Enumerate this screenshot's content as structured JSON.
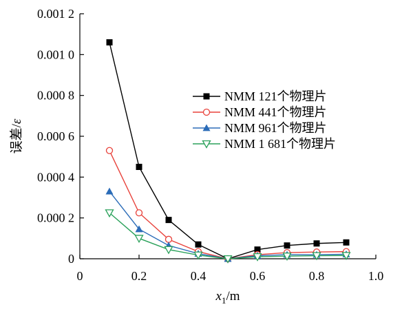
{
  "chart_data": {
    "type": "line",
    "x": [
      0.1,
      0.2,
      0.3,
      0.4,
      0.5,
      0.6,
      0.7,
      0.8,
      0.9
    ],
    "xlabel_main": "x",
    "xlabel_sub": "1",
    "xlabel_unit": "/m",
    "ylabel_main": "误差/",
    "ylabel_symbol": "ε",
    "xlim": [
      0,
      1.0
    ],
    "ylim": [
      0,
      0.0012
    ],
    "x_ticks": [
      0,
      0.2,
      0.4,
      0.6,
      0.8,
      1.0
    ],
    "x_tick_labels": [
      "0",
      "0.2",
      "0.4",
      "0.6",
      "0.8",
      "1.0"
    ],
    "y_ticks": [
      0,
      0.0002,
      0.0004,
      0.0006,
      0.0008,
      0.001,
      0.0012
    ],
    "y_tick_labels": [
      "0",
      "0.000 2",
      "0.000 4",
      "0.000 6",
      "0.000 8",
      "0.001 0",
      "0.001 2"
    ],
    "grid": false,
    "legend_position": "right",
    "series": [
      {
        "name": "NMM 121个物理片",
        "color": "#000000",
        "marker": "square-filled",
        "values": [
          0.00106,
          0.00045,
          0.00019,
          7e-05,
          0.0,
          4.5e-05,
          6.5e-05,
          7.5e-05,
          8e-05
        ]
      },
      {
        "name": "NMM 441个物理片",
        "color": "#e8413a",
        "marker": "circle-open",
        "values": [
          0.00053,
          0.000225,
          9.5e-05,
          3.5e-05,
          0.0,
          2e-05,
          3e-05,
          3.3e-05,
          3.5e-05
        ]
      },
      {
        "name": "NMM 961个物理片",
        "color": "#2b6cb8",
        "marker": "triangle-filled",
        "values": [
          0.00033,
          0.000145,
          6.5e-05,
          2.5e-05,
          0.0,
          1.5e-05,
          2e-05,
          2e-05,
          2.2e-05
        ]
      },
      {
        "name": "NMM 1 681个物理片",
        "color": "#2aa15a",
        "marker": "triangle-down-open",
        "values": [
          0.000225,
          0.0001,
          4.5e-05,
          1.8e-05,
          0.0,
          1e-05,
          1.3e-05,
          1.5e-05,
          1.6e-05
        ]
      }
    ]
  }
}
